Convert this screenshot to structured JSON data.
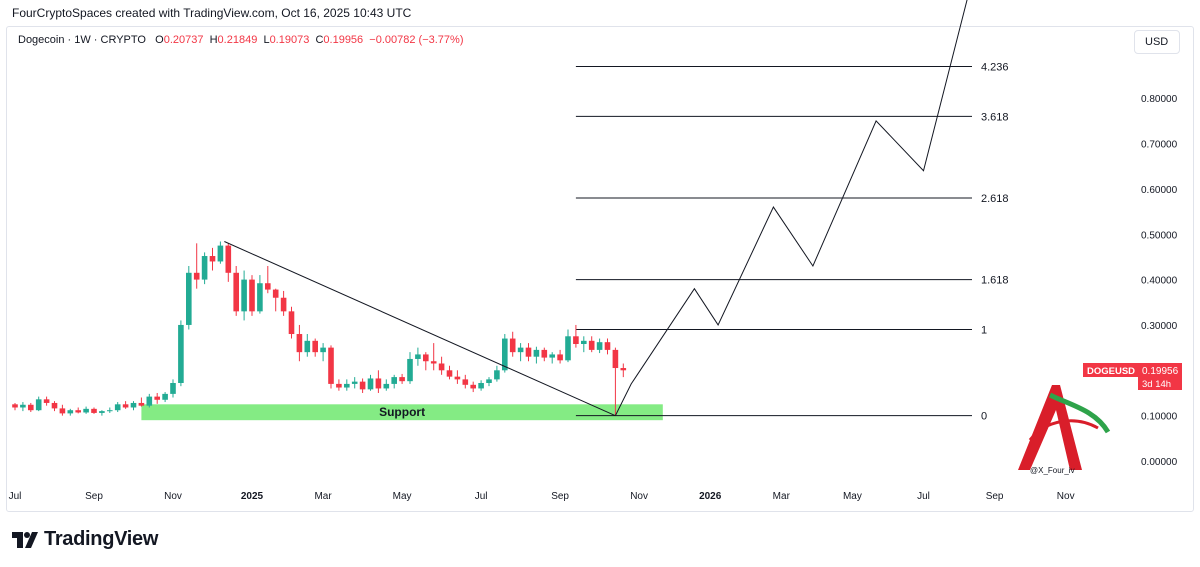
{
  "header": {
    "caption": "FourCryptoSpaces created with TradingView.com, Oct 16, 2025 10:43 UTC"
  },
  "legend": {
    "symbol": "Dogecoin · 1W · CRYPTO",
    "open_label": "O",
    "open": "0.20737",
    "high_label": "H",
    "high": "0.21849",
    "low_label": "L",
    "low": "0.19073",
    "close_label": "C",
    "close": "0.19956",
    "change": "−0.00782 (−3.77%)"
  },
  "currency_button": "USD",
  "price_tag": {
    "symbol": "DOGEUSD",
    "price": "0.19956",
    "countdown": "3d 14h"
  },
  "watermark_handle": "@X_Four_iv",
  "footer_brand": "TradingView",
  "colors": {
    "up": "#22ab94",
    "down": "#f23645",
    "support": "#6ee86e",
    "line": "#131722"
  },
  "chart_data": {
    "type": "candlestick",
    "x_axis": {
      "ticks": [
        {
          "label": "Jul",
          "week": 0
        },
        {
          "label": "Sep",
          "week": 10
        },
        {
          "label": "Nov",
          "week": 20
        },
        {
          "label": "2025",
          "week": 30
        },
        {
          "label": "Mar",
          "week": 39
        },
        {
          "label": "May",
          "week": 49
        },
        {
          "label": "Jul",
          "week": 59
        },
        {
          "label": "Sep",
          "week": 69
        },
        {
          "label": "Nov",
          "week": 79
        },
        {
          "label": "2026",
          "week": 88
        },
        {
          "label": "Mar",
          "week": 97
        },
        {
          "label": "May",
          "week": 106
        },
        {
          "label": "Jul",
          "week": 115
        },
        {
          "label": "Sep",
          "week": 124
        },
        {
          "label": "Nov",
          "week": 133
        }
      ]
    },
    "y_axis": {
      "ticks": [
        "0.80000",
        "0.70000",
        "0.60000",
        "0.50000",
        "0.40000",
        "0.30000",
        "0.20000",
        "0.10000",
        "0.00000"
      ],
      "tick_values": [
        0.8,
        0.7,
        0.6,
        0.5,
        0.4,
        0.3,
        0.2,
        0.1,
        0.0
      ]
    },
    "candles": [
      [
        0.125,
        0.128,
        0.112,
        0.118
      ],
      [
        0.118,
        0.13,
        0.11,
        0.124
      ],
      [
        0.124,
        0.128,
        0.108,
        0.112
      ],
      [
        0.112,
        0.142,
        0.11,
        0.136
      ],
      [
        0.136,
        0.142,
        0.122,
        0.128
      ],
      [
        0.128,
        0.132,
        0.11,
        0.116
      ],
      [
        0.116,
        0.124,
        0.1,
        0.105
      ],
      [
        0.105,
        0.115,
        0.1,
        0.112
      ],
      [
        0.112,
        0.118,
        0.105,
        0.107
      ],
      [
        0.107,
        0.12,
        0.104,
        0.115
      ],
      [
        0.115,
        0.118,
        0.104,
        0.106
      ],
      [
        0.106,
        0.112,
        0.1,
        0.11
      ],
      [
        0.11,
        0.118,
        0.106,
        0.112
      ],
      [
        0.112,
        0.13,
        0.108,
        0.125
      ],
      [
        0.125,
        0.132,
        0.115,
        0.118
      ],
      [
        0.118,
        0.132,
        0.112,
        0.128
      ],
      [
        0.128,
        0.14,
        0.12,
        0.122
      ],
      [
        0.122,
        0.148,
        0.118,
        0.142
      ],
      [
        0.142,
        0.15,
        0.126,
        0.135
      ],
      [
        0.135,
        0.152,
        0.13,
        0.148
      ],
      [
        0.148,
        0.18,
        0.14,
        0.172
      ],
      [
        0.172,
        0.31,
        0.165,
        0.3
      ],
      [
        0.3,
        0.43,
        0.29,
        0.415
      ],
      [
        0.415,
        0.48,
        0.38,
        0.4
      ],
      [
        0.4,
        0.46,
        0.39,
        0.452
      ],
      [
        0.452,
        0.47,
        0.42,
        0.44
      ],
      [
        0.44,
        0.484,
        0.435,
        0.475
      ],
      [
        0.475,
        0.48,
        0.395,
        0.415
      ],
      [
        0.415,
        0.43,
        0.32,
        0.33
      ],
      [
        0.33,
        0.42,
        0.31,
        0.4
      ],
      [
        0.4,
        0.41,
        0.32,
        0.33
      ],
      [
        0.33,
        0.41,
        0.325,
        0.392
      ],
      [
        0.392,
        0.43,
        0.37,
        0.378
      ],
      [
        0.378,
        0.38,
        0.33,
        0.36
      ],
      [
        0.36,
        0.375,
        0.32,
        0.33
      ],
      [
        0.33,
        0.34,
        0.27,
        0.28
      ],
      [
        0.28,
        0.3,
        0.22,
        0.24
      ],
      [
        0.24,
        0.28,
        0.23,
        0.265
      ],
      [
        0.265,
        0.27,
        0.23,
        0.24
      ],
      [
        0.24,
        0.26,
        0.22,
        0.25
      ],
      [
        0.25,
        0.255,
        0.16,
        0.17
      ],
      [
        0.17,
        0.18,
        0.155,
        0.162
      ],
      [
        0.162,
        0.18,
        0.155,
        0.17
      ],
      [
        0.17,
        0.185,
        0.16,
        0.175
      ],
      [
        0.175,
        0.182,
        0.15,
        0.158
      ],
      [
        0.158,
        0.19,
        0.155,
        0.182
      ],
      [
        0.182,
        0.2,
        0.15,
        0.16
      ],
      [
        0.16,
        0.18,
        0.155,
        0.17
      ],
      [
        0.17,
        0.19,
        0.16,
        0.185
      ],
      [
        0.185,
        0.192,
        0.17,
        0.176
      ],
      [
        0.176,
        0.24,
        0.17,
        0.225
      ],
      [
        0.225,
        0.25,
        0.21,
        0.235
      ],
      [
        0.235,
        0.24,
        0.2,
        0.22
      ],
      [
        0.22,
        0.26,
        0.2,
        0.215
      ],
      [
        0.215,
        0.23,
        0.19,
        0.2
      ],
      [
        0.2,
        0.21,
        0.18,
        0.186
      ],
      [
        0.186,
        0.2,
        0.17,
        0.18
      ],
      [
        0.18,
        0.19,
        0.16,
        0.168
      ],
      [
        0.168,
        0.175,
        0.152,
        0.16
      ],
      [
        0.16,
        0.178,
        0.155,
        0.172
      ],
      [
        0.172,
        0.185,
        0.165,
        0.18
      ],
      [
        0.18,
        0.21,
        0.175,
        0.2
      ],
      [
        0.2,
        0.28,
        0.195,
        0.27
      ],
      [
        0.27,
        0.285,
        0.23,
        0.24
      ],
      [
        0.24,
        0.26,
        0.22,
        0.25
      ],
      [
        0.25,
        0.26,
        0.22,
        0.23
      ],
      [
        0.23,
        0.252,
        0.215,
        0.245
      ],
      [
        0.245,
        0.25,
        0.22,
        0.228
      ],
      [
        0.228,
        0.24,
        0.215,
        0.235
      ],
      [
        0.235,
        0.245,
        0.215,
        0.222
      ],
      [
        0.222,
        0.29,
        0.218,
        0.275
      ],
      [
        0.275,
        0.3,
        0.25,
        0.258
      ],
      [
        0.258,
        0.275,
        0.24,
        0.265
      ],
      [
        0.265,
        0.275,
        0.24,
        0.245
      ],
      [
        0.245,
        0.27,
        0.238,
        0.262
      ],
      [
        0.262,
        0.27,
        0.235,
        0.245
      ],
      [
        0.245,
        0.25,
        0.1,
        0.205
      ],
      [
        0.205,
        0.215,
        0.185,
        0.2
      ]
    ],
    "downtrend_line": [
      {
        "week": 26.5,
        "price": 0.484
      },
      {
        "week": 76,
        "price": 0.1
      }
    ],
    "support_zone": {
      "label": "Support",
      "week_start": 16,
      "week_end": 82,
      "price_low": 0.09,
      "price_high": 0.125
    },
    "fib_levels": [
      {
        "label": "0",
        "price": 0.1
      },
      {
        "label": "1",
        "price": 0.29
      },
      {
        "label": "1.618",
        "price": 0.4
      },
      {
        "label": "2.618",
        "price": 0.58
      },
      {
        "label": "3.618",
        "price": 0.76
      },
      {
        "label": "4.236",
        "price": 0.87
      }
    ],
    "fib_line_start_week": 71,
    "projection_path": [
      {
        "week": 76,
        "price": 0.1
      },
      {
        "week": 78,
        "price": 0.17
      },
      {
        "week": 86,
        "price": 0.38
      },
      {
        "week": 89,
        "price": 0.3
      },
      {
        "week": 96,
        "price": 0.56
      },
      {
        "week": 101,
        "price": 0.43
      },
      {
        "week": 109,
        "price": 0.75
      },
      {
        "week": 115,
        "price": 0.64
      },
      {
        "week": 121,
        "price": 1.05
      }
    ],
    "projection_arrow_tip": {
      "week": 122,
      "price": 1.08
    }
  }
}
